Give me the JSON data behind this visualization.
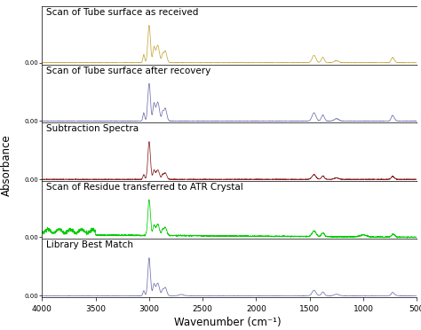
{
  "title": "",
  "xlabel": "Wavenumber (cm⁻¹)",
  "ylabel": "Absorbance",
  "panel_labels": [
    "Scan of Tube surface as received",
    "Scan of Tube surface after recovery",
    "Subtraction Spectra",
    "Scan of Residue transferred to ATR Crystal",
    "Library Best Match"
  ],
  "panel_colors": [
    "#c8a840",
    "#7070b0",
    "#8b2020",
    "#00cc00",
    "#7070b0"
  ],
  "background_color": "#ffffff",
  "x_range": [
    4000,
    500
  ],
  "panel_label_fontsize": 7.5,
  "axis_label_fontsize": 8.5
}
